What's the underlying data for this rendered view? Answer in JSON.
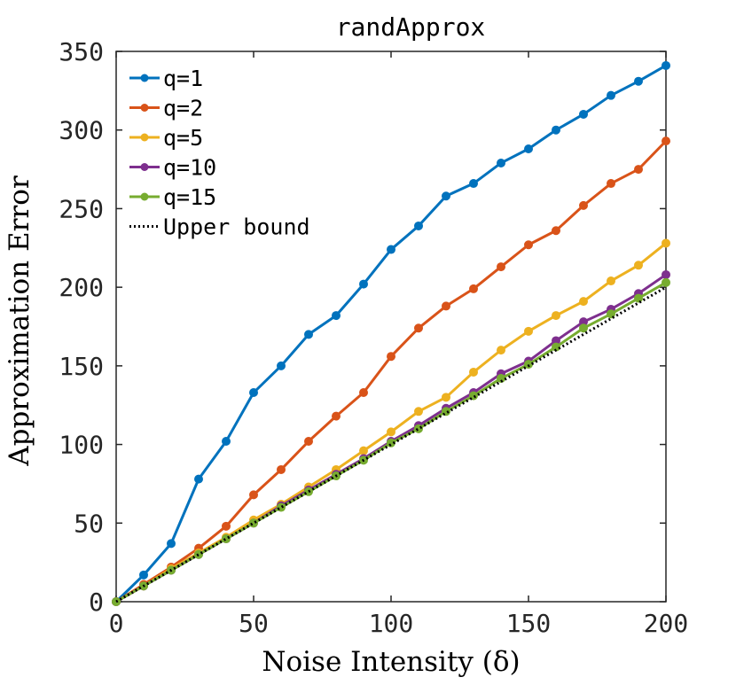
{
  "chart_data": {
    "type": "line",
    "title": "randApprox",
    "xlabel": "Noise Intensity (δ)",
    "ylabel": "Approximation Error",
    "xlim": [
      0,
      200
    ],
    "ylim": [
      0,
      350
    ],
    "xticks": [
      0,
      50,
      100,
      150,
      200
    ],
    "yticks": [
      0,
      50,
      100,
      150,
      200,
      250,
      300,
      350
    ],
    "grid": false,
    "legend_position": "top-left",
    "x": [
      0,
      10,
      20,
      30,
      40,
      50,
      60,
      70,
      80,
      90,
      100,
      110,
      120,
      130,
      140,
      150,
      160,
      170,
      180,
      190,
      200
    ],
    "series": [
      {
        "name": "q=1",
        "color": "#0072BD",
        "style": "solid-marker",
        "values": [
          0,
          17,
          37,
          78,
          102,
          133,
          150,
          170,
          182,
          202,
          224,
          239,
          258,
          266,
          279,
          288,
          300,
          310,
          322,
          331,
          341
        ]
      },
      {
        "name": "q=2",
        "color": "#D95319",
        "style": "solid-marker",
        "values": [
          0,
          11,
          22,
          34,
          48,
          68,
          84,
          102,
          118,
          133,
          156,
          174,
          188,
          199,
          213,
          227,
          236,
          252,
          266,
          275,
          293
        ]
      },
      {
        "name": "q=5",
        "color": "#EDB120",
        "style": "solid-marker",
        "values": [
          0,
          10,
          21,
          31,
          41,
          52,
          62,
          73,
          84,
          96,
          108,
          121,
          130,
          146,
          160,
          172,
          182,
          191,
          204,
          214,
          228
        ]
      },
      {
        "name": "q=10",
        "color": "#7E2F8E",
        "style": "solid-marker",
        "values": [
          0,
          10,
          20,
          30,
          40,
          50,
          61,
          71,
          81,
          91,
          102,
          112,
          123,
          133,
          145,
          153,
          166,
          178,
          186,
          196,
          208
        ]
      },
      {
        "name": "q=15",
        "color": "#77AC30",
        "style": "solid-marker",
        "values": [
          0,
          10,
          20,
          30,
          40,
          50,
          60,
          70,
          80,
          90,
          101,
          110,
          121,
          131,
          142,
          151,
          162,
          174,
          183,
          193,
          203
        ]
      },
      {
        "name": "Upper bound",
        "color": "#000000",
        "style": "dotted",
        "values": [
          0,
          10,
          20,
          30,
          40,
          50,
          60,
          70,
          80,
          90,
          100,
          110,
          120,
          130,
          140,
          150,
          160,
          170,
          180,
          190,
          200
        ]
      }
    ]
  }
}
